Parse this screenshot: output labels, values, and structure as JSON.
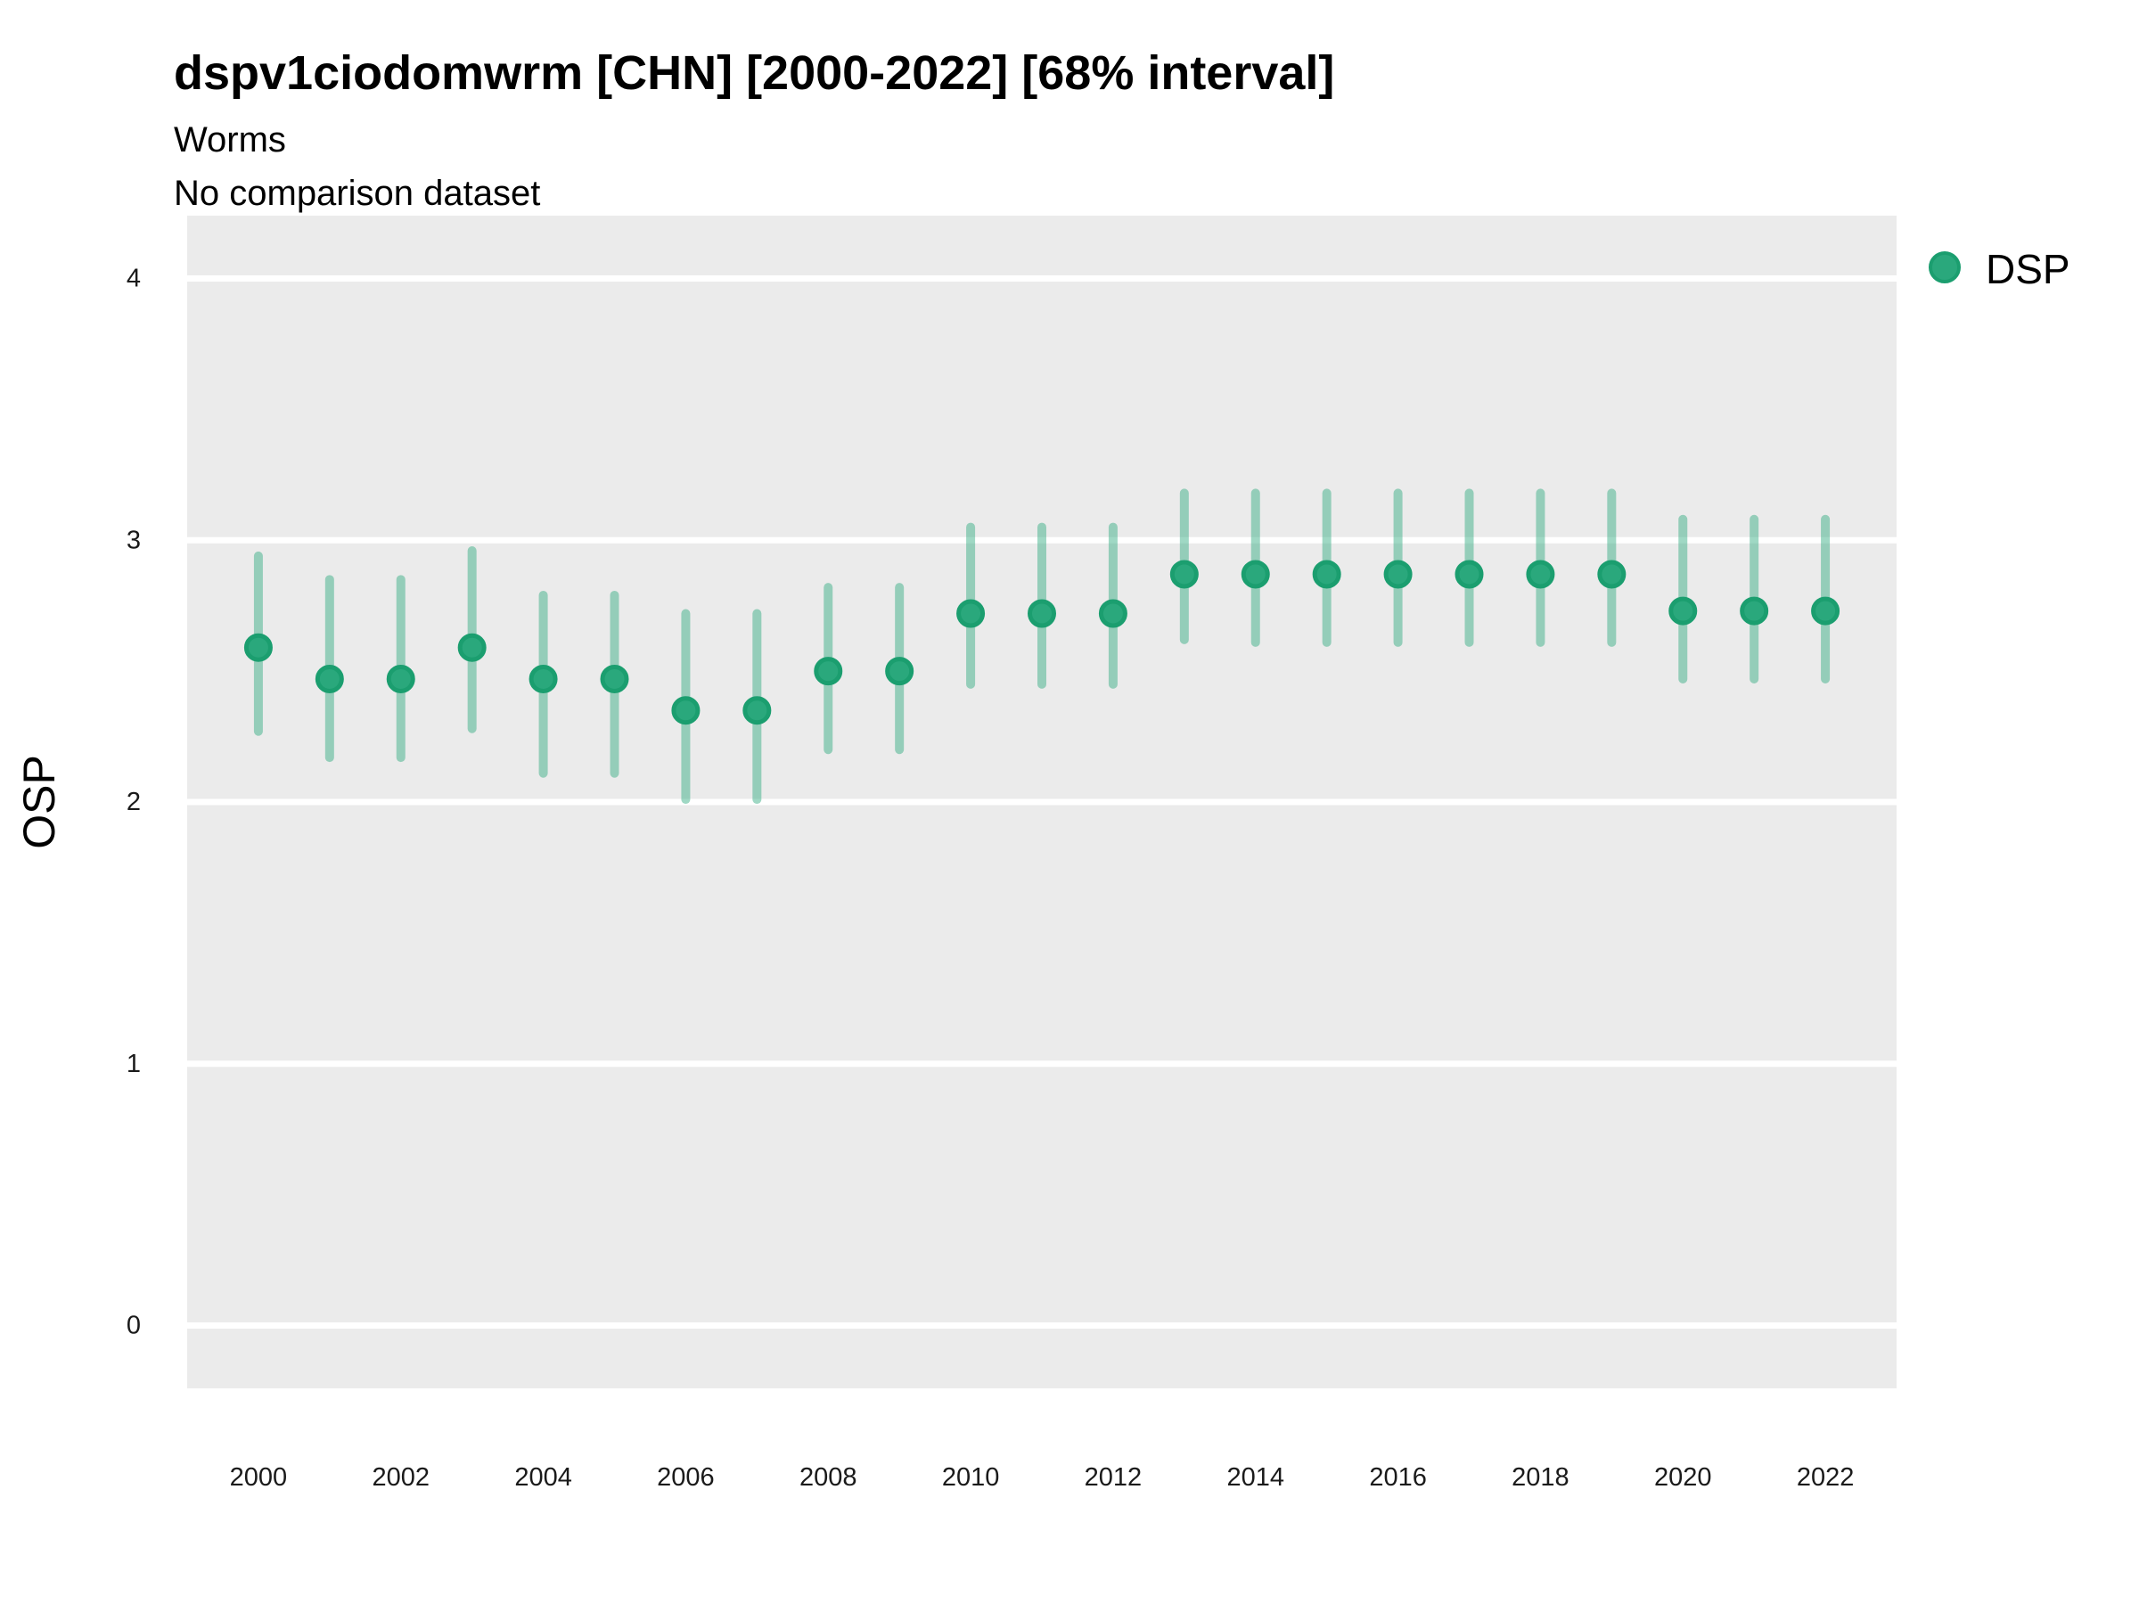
{
  "colors": {
    "page_bg": "#ffffff",
    "panel_bg": "#ebebeb",
    "gridline": "#ffffff",
    "point_fill": "#2aa87c",
    "point_stroke": "#1b9e6f",
    "interval_bar": "#2aa87c73",
    "text": "#000000",
    "tick_text": "#1a1a1a"
  },
  "chart_data": {
    "type": "scatter",
    "title": "dspv1ciodomwrm [CHN] [2000-2022] [68% interval]",
    "subtitle": "Worms",
    "note": "No comparison dataset",
    "xlabel": "",
    "ylabel": "OSP",
    "interval_level": "68%",
    "grid": "horizontal-major-only",
    "legend_position": "right-top-outside",
    "x": [
      2000,
      2001,
      2002,
      2003,
      2004,
      2005,
      2006,
      2007,
      2008,
      2009,
      2010,
      2011,
      2012,
      2013,
      2014,
      2015,
      2016,
      2017,
      2018,
      2019,
      2020,
      2021,
      2022
    ],
    "series": [
      {
        "name": "DSP",
        "values": [
          2.59,
          2.47,
          2.47,
          2.59,
          2.47,
          2.47,
          2.35,
          2.35,
          2.5,
          2.5,
          2.72,
          2.72,
          2.72,
          2.87,
          2.87,
          2.87,
          2.87,
          2.87,
          2.87,
          2.87,
          2.73,
          2.73,
          2.73
        ],
        "interval_low": [
          2.27,
          2.17,
          2.17,
          2.28,
          2.11,
          2.11,
          2.01,
          2.01,
          2.2,
          2.2,
          2.45,
          2.45,
          2.45,
          2.62,
          2.61,
          2.61,
          2.61,
          2.61,
          2.61,
          2.61,
          2.47,
          2.47,
          2.47
        ],
        "interval_high": [
          2.94,
          2.85,
          2.85,
          2.96,
          2.79,
          2.79,
          2.72,
          2.72,
          2.82,
          2.82,
          3.05,
          3.05,
          3.05,
          3.18,
          3.18,
          3.18,
          3.18,
          3.18,
          3.18,
          3.18,
          3.08,
          3.08,
          3.08
        ]
      }
    ],
    "x_ticks": [
      2000,
      2002,
      2004,
      2006,
      2008,
      2010,
      2012,
      2014,
      2016,
      2018,
      2020,
      2022
    ],
    "y_ticks": [
      0,
      1,
      2,
      3,
      4
    ],
    "xlim": [
      1999,
      2023
    ],
    "ylim": [
      -0.24,
      4.24
    ]
  }
}
